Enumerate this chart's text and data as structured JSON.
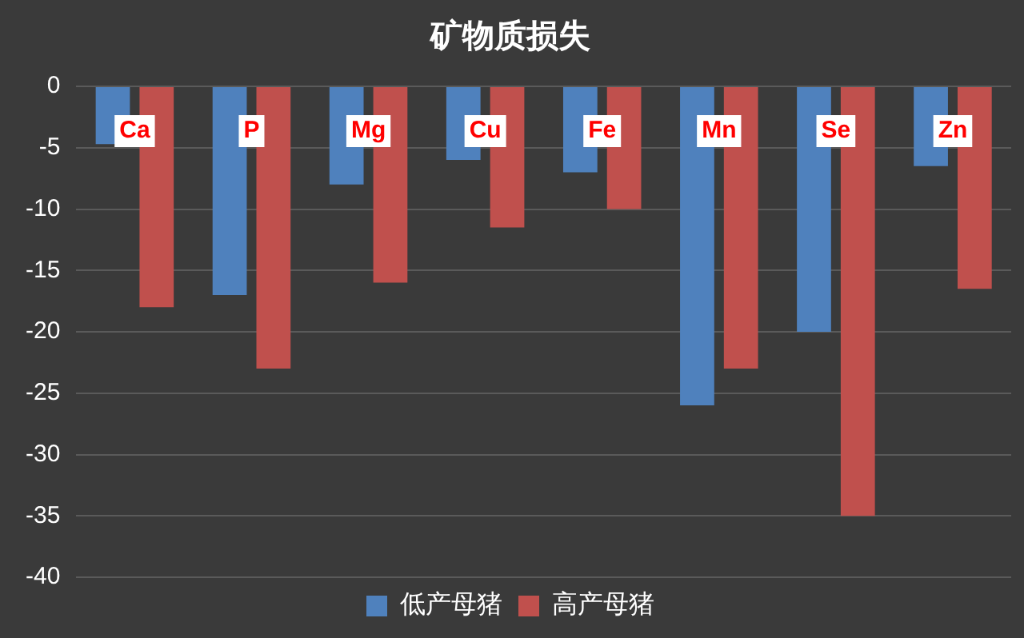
{
  "chart_data": {
    "type": "bar",
    "title": "矿物质损失",
    "categories": [
      "Ca",
      "P",
      "Mg",
      "Cu",
      "Fe",
      "Mn",
      "Se",
      "Zn"
    ],
    "series": [
      {
        "name": "低产母猪",
        "color": "#4f81bd",
        "values": [
          -4.7,
          -17,
          -8,
          -6,
          -7,
          -26,
          -20,
          -6.5
        ]
      },
      {
        "name": "高产母猪",
        "color": "#c0504d",
        "values": [
          -18,
          -23,
          -16,
          -11.5,
          -10,
          -23,
          -35,
          -16.5
        ]
      }
    ],
    "ylim": [
      -40,
      0
    ],
    "yticks": [
      -40,
      -35,
      -30,
      -25,
      -20,
      -15,
      -10,
      -5,
      0
    ],
    "grid": "y",
    "legend": "bottom"
  }
}
